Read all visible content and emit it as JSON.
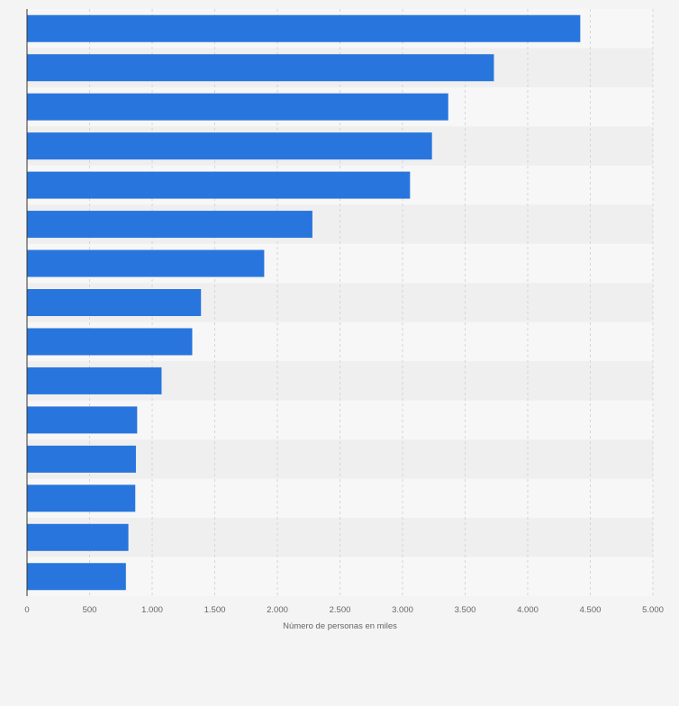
{
  "chart_data": {
    "type": "bar",
    "orientation": "horizontal",
    "title": "",
    "categories": [
      "",
      "",
      "",
      "",
      "",
      "",
      "",
      "",
      "",
      "",
      "",
      "",
      "",
      "",
      ""
    ],
    "values": [
      4420,
      3730,
      3365,
      3235,
      3060,
      2280,
      1895,
      1390,
      1320,
      1075,
      880,
      870,
      865,
      810,
      790
    ],
    "xlabel": "Número de personas en miles",
    "ylabel": "",
    "xlim": [
      0,
      5000
    ],
    "xticks": [
      {
        "value": 0,
        "label": "0"
      },
      {
        "value": 500,
        "label": "500"
      },
      {
        "value": 1000,
        "label": "1.000"
      },
      {
        "value": 1500,
        "label": "1.500"
      },
      {
        "value": 2000,
        "label": "2.000"
      },
      {
        "value": 2500,
        "label": "2.500"
      },
      {
        "value": 3000,
        "label": "3.000"
      },
      {
        "value": 3500,
        "label": "3.500"
      },
      {
        "value": 4000,
        "label": "4.000"
      },
      {
        "value": 4500,
        "label": "4.500"
      },
      {
        "value": 5000,
        "label": "5.000"
      }
    ],
    "grid": true,
    "legend": "none",
    "colors": {
      "bar": "#2876dd",
      "background": "#f4f4f4",
      "band_light": "#f7f7f7",
      "band_dark": "#efefef",
      "grid": "#d6d6d6",
      "axis": "#333333",
      "tick_text": "#666666"
    }
  }
}
